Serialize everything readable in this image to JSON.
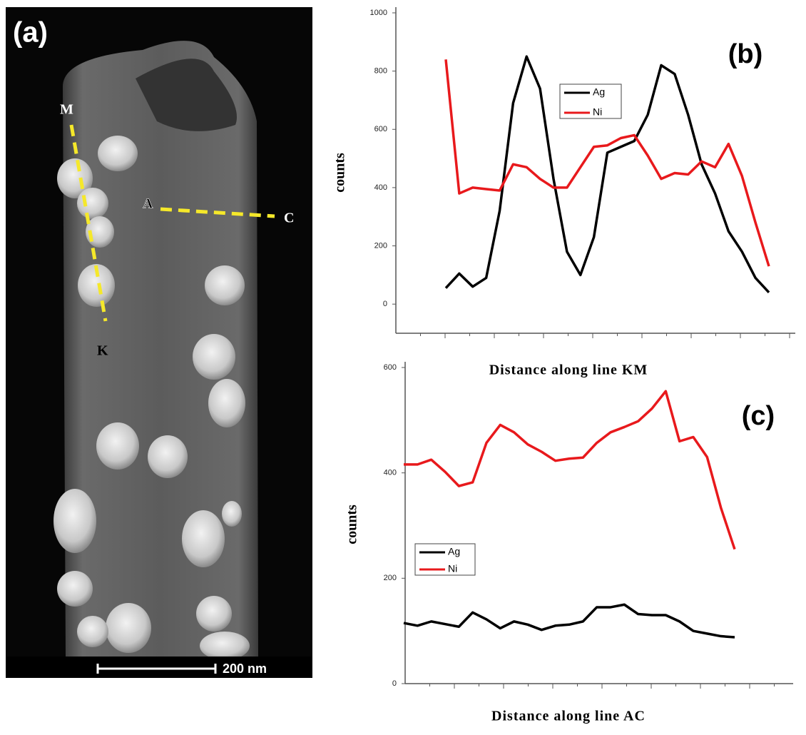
{
  "panel_a": {
    "label": "(a)",
    "markers": [
      "M",
      "A",
      "C",
      "K"
    ],
    "scale_bar": "200 nm"
  },
  "chart_data": [
    {
      "type": "line",
      "panel_label": "(b)",
      "x_label": "Distance along line KM",
      "y_label": "counts",
      "categories": [
        null,
        null,
        null,
        null,
        null,
        null,
        null,
        null,
        null,
        null,
        null,
        null,
        null,
        null,
        null,
        null,
        null,
        null,
        null,
        null,
        null,
        null,
        null,
        null,
        null
      ],
      "ylim": [
        -100,
        1000
      ],
      "yticks": [
        0,
        200,
        400,
        600,
        800,
        1000
      ],
      "series": [
        {
          "name": "Ag",
          "color": "#000000",
          "values": [
            55,
            105,
            60,
            90,
            320,
            690,
            850,
            740,
            430,
            180,
            100,
            230,
            520,
            540,
            560,
            650,
            820,
            790,
            650,
            480,
            380,
            250,
            180,
            90,
            40
          ]
        },
        {
          "name": "Ni",
          "color": "#e8191c",
          "values": [
            840,
            380,
            400,
            395,
            390,
            480,
            470,
            430,
            400,
            400,
            470,
            540,
            545,
            570,
            580,
            510,
            430,
            450,
            445,
            490,
            470,
            550,
            440,
            280,
            130
          ]
        }
      ]
    },
    {
      "type": "line",
      "panel_label": "(c)",
      "x_label": "Distance along line AC",
      "y_label": "counts",
      "categories": [
        null,
        null,
        null,
        null,
        null,
        null,
        null,
        null,
        null,
        null,
        null,
        null,
        null,
        null,
        null,
        null,
        null,
        null,
        null,
        null,
        null,
        null,
        null,
        null,
        null
      ],
      "ylim": [
        0,
        600
      ],
      "yticks": [
        0,
        200,
        400,
        600
      ],
      "series": [
        {
          "name": "Ag",
          "color": "#000000",
          "values": [
            115,
            110,
            118,
            113,
            108,
            135,
            122,
            105,
            118,
            112,
            102,
            110,
            112,
            118,
            145,
            145,
            150,
            132,
            130,
            130,
            118,
            100,
            95,
            90,
            88
          ]
        },
        {
          "name": "Ni",
          "color": "#e8191c",
          "values": [
            416,
            416,
            425,
            402,
            375,
            382,
            457,
            491,
            477,
            454,
            440,
            423,
            427,
            429,
            457,
            477,
            487,
            498,
            522,
            555,
            460,
            468,
            430,
            334,
            255
          ]
        }
      ]
    }
  ]
}
